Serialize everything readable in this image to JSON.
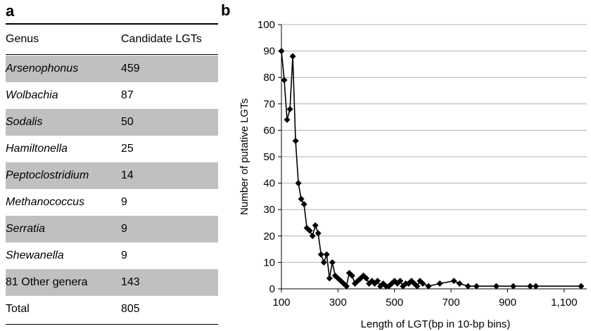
{
  "panel_a": {
    "label": "a",
    "header": {
      "genus": "Genus",
      "count": "Candidate LGTs"
    },
    "rows": [
      {
        "genus": "Arsenophonus",
        "count": "459",
        "italic": true,
        "shaded": true
      },
      {
        "genus": "Wolbachia",
        "count": "87",
        "italic": true,
        "shaded": false
      },
      {
        "genus": "Sodalis",
        "count": "50",
        "italic": true,
        "shaded": true
      },
      {
        "genus": "Hamiltonella",
        "count": "25",
        "italic": true,
        "shaded": false
      },
      {
        "genus": "Peptoclostridium",
        "count": "14",
        "italic": true,
        "shaded": true
      },
      {
        "genus": "Methanococcus",
        "count": "9",
        "italic": true,
        "shaded": false
      },
      {
        "genus": "Serratia",
        "count": "9",
        "italic": true,
        "shaded": true
      },
      {
        "genus": "Shewanella",
        "count": "9",
        "italic": true,
        "shaded": false
      },
      {
        "genus": "81 Other genera",
        "count": "143",
        "italic": false,
        "shaded": true
      }
    ],
    "total": {
      "genus": "Total",
      "count": "805"
    },
    "shade_color": "#c0c0c0"
  },
  "chart_data": {
    "type": "line",
    "panel_label": "b",
    "title": "",
    "xlabel": "Length of LGT(bp in 10-bp bins)",
    "ylabel": "Number of putative LGTs",
    "xlim": [
      100,
      1180
    ],
    "ylim": [
      0,
      100
    ],
    "x_ticks": [
      100,
      300,
      500,
      700,
      900,
      1100
    ],
    "x_tick_labels": [
      "100",
      "300",
      "500",
      "700",
      "900",
      "1,100"
    ],
    "y_ticks": [
      0,
      10,
      20,
      30,
      40,
      50,
      60,
      70,
      80,
      90,
      100
    ],
    "y_tick_labels": [
      "0",
      "10",
      "20",
      "30",
      "40",
      "50",
      "60",
      "70",
      "80",
      "90",
      "100"
    ],
    "grid": "horizontal",
    "marker": "diamond",
    "line_color": "#000000",
    "grid_color": "#b0b0b0",
    "series": [
      {
        "x": [
          100,
          110,
          120,
          130,
          140,
          150,
          160,
          170,
          180,
          190,
          200,
          210,
          220,
          230,
          240,
          250,
          260,
          270,
          280,
          290,
          300,
          310,
          320,
          330,
          340,
          350,
          360,
          370,
          380,
          390,
          400,
          410,
          420,
          430,
          440,
          450,
          460,
          470,
          480,
          490,
          500,
          510,
          520,
          530,
          540,
          550,
          560,
          570,
          580,
          590,
          600,
          620,
          660,
          710,
          730,
          760,
          790,
          860,
          920,
          980,
          1000,
          1160
        ],
        "y": [
          90,
          79,
          64,
          68,
          88,
          56,
          40,
          34,
          32,
          23,
          22,
          20,
          24,
          21,
          13,
          10,
          13,
          4,
          10,
          5,
          4,
          3,
          2,
          1,
          6,
          5,
          2,
          3,
          4,
          5,
          4,
          2,
          3,
          2,
          3,
          1,
          2,
          1,
          1,
          2,
          3,
          2,
          3,
          1,
          2,
          2,
          3,
          2,
          1,
          3,
          2,
          1,
          2,
          3,
          2,
          1,
          1,
          1,
          1,
          1,
          1,
          1
        ]
      }
    ]
  }
}
